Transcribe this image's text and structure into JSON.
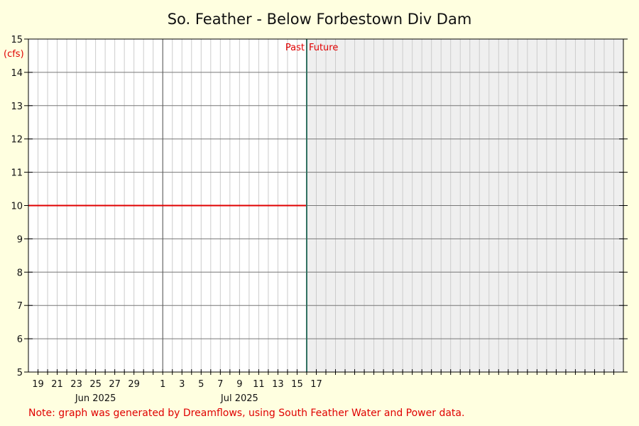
{
  "chart_data": {
    "type": "line",
    "title": "So. Feather - Below Forbestown Div Dam",
    "ylabel": "(cfs)",
    "ylim": [
      5,
      15
    ],
    "yticks": [
      5,
      6,
      7,
      8,
      9,
      10,
      11,
      12,
      13,
      14,
      15
    ],
    "xlim": [
      "2025-05-18",
      "2025-07-19"
    ],
    "x_day_ticks": [
      {
        "date": "2025-05-19",
        "label": "19"
      },
      {
        "date": "2025-05-21",
        "label": "21"
      },
      {
        "date": "2025-05-23",
        "label": "23"
      },
      {
        "date": "2025-05-25",
        "label": "25"
      },
      {
        "date": "2025-05-27",
        "label": "27"
      },
      {
        "date": "2025-05-29",
        "label": "29"
      },
      {
        "date": "2025-06-01",
        "label": "1"
      },
      {
        "date": "2025-06-03",
        "label": "3"
      },
      {
        "date": "2025-06-05",
        "label": "5"
      },
      {
        "date": "2025-06-07",
        "label": "7"
      },
      {
        "date": "2025-06-09",
        "label": "9"
      },
      {
        "date": "2025-06-11",
        "label": "11"
      },
      {
        "date": "2025-06-13",
        "label": "13"
      },
      {
        "date": "2025-06-15",
        "label": "15"
      },
      {
        "date": "2025-06-17",
        "label": "17"
      }
    ],
    "month_labels": [
      {
        "date": "2025-05-25",
        "label": "Jun 2025"
      },
      {
        "date": "2025-06-09",
        "label": "Jul 2025"
      }
    ],
    "month_boundary": "2025-06-01",
    "now": "2025-06-16",
    "past_label": "Past",
    "future_label": "Future",
    "grid": true,
    "series": [
      {
        "color": "#e00000",
        "points": [
          {
            "x": "2025-05-18",
            "y": 10
          },
          {
            "x": "2025-06-16",
            "y": 10
          }
        ]
      }
    ],
    "note": "Note: graph was generated by Dreamflows, using South Feather Water and Power data."
  }
}
